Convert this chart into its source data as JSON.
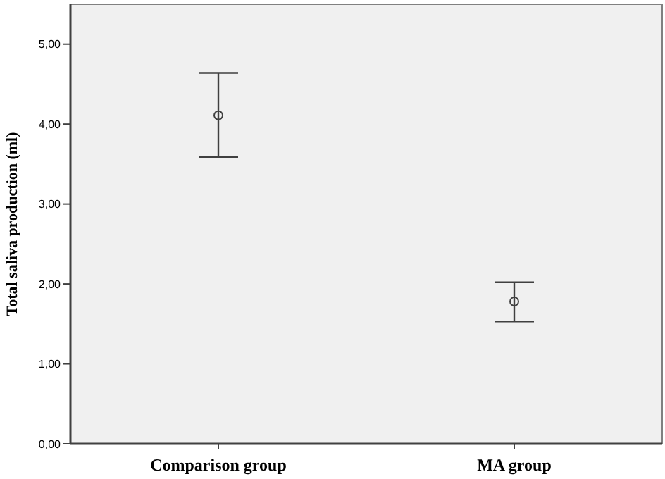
{
  "chart_data": {
    "type": "scatter",
    "ylabel": "Total saliva production (ml)",
    "categories": [
      "Comparison group",
      "MA group"
    ],
    "values": [
      4.11,
      1.78
    ],
    "errors": [
      [
        3.59,
        4.64
      ],
      [
        1.53,
        2.02
      ]
    ],
    "color": "#404040",
    "marker": "circle",
    "ylim": [
      0,
      5.5
    ],
    "yticks": [
      {
        "value": 0,
        "label": "0,00"
      },
      {
        "value": 1,
        "label": "1,00"
      },
      {
        "value": 2,
        "label": "2,00"
      },
      {
        "value": 3,
        "label": "3,00"
      },
      {
        "value": 4,
        "label": "4,00"
      },
      {
        "value": 5,
        "label": "5,00"
      }
    ],
    "grid": false
  }
}
